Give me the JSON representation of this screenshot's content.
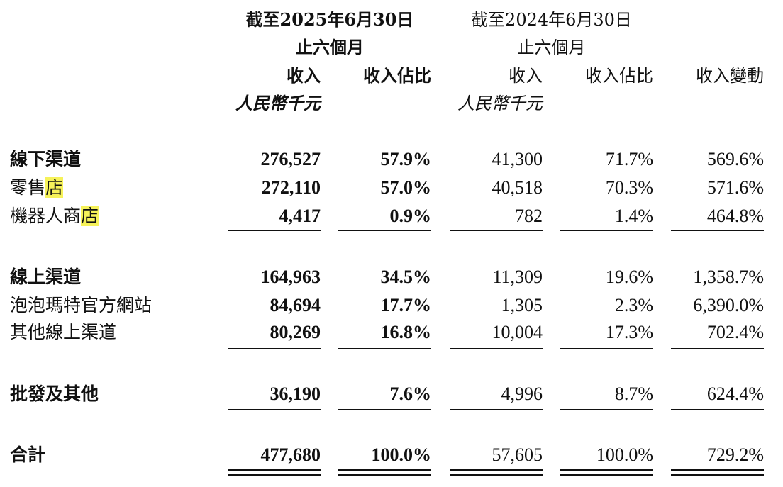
{
  "header": {
    "period_2025": "截至2025年6月30日",
    "period_2024": "截至2024年6月30日",
    "six_months_2025": "止六個月",
    "six_months_2024": "止六個月",
    "col_revenue_2025": "收入",
    "col_share_2025": "收入佔比",
    "col_revenue_2024": "收入",
    "col_share_2024": "收入佔比",
    "col_change": "收入變動",
    "unit_2025": "人民幣千元",
    "unit_2024": "人民幣千元"
  },
  "rows": [
    {
      "label": "線下渠道",
      "rev2025": "276,527",
      "share2025": "57.9%",
      "rev2024": "41,300",
      "share2024": "71.7%",
      "change": "569.6%"
    },
    {
      "label_main": "零售",
      "label_highlight": "店",
      "rev2025": "272,110",
      "share2025": "57.0%",
      "rev2024": "40,518",
      "share2024": "70.3%",
      "change": "571.6%"
    },
    {
      "label_main": "機器人商",
      "label_highlight": "店",
      "rev2025": "4,417",
      "share2025": "0.9%",
      "rev2024": "782",
      "share2024": "1.4%",
      "change": "464.8%"
    },
    {
      "label": "線上渠道",
      "rev2025": "164,963",
      "share2025": "34.5%",
      "rev2024": "11,309",
      "share2024": "19.6%",
      "change": "1,358.7%"
    },
    {
      "label": "泡泡瑪特官方網站",
      "rev2025": "84,694",
      "share2025": "17.7%",
      "rev2024": "1,305",
      "share2024": "2.3%",
      "change": "6,390.0%"
    },
    {
      "label": "其他線上渠道",
      "rev2025": "80,269",
      "share2025": "16.8%",
      "rev2024": "10,004",
      "share2024": "17.3%",
      "change": "702.4%"
    },
    {
      "label": "批發及其他",
      "rev2025": "36,190",
      "share2025": "7.6%",
      "rev2024": "4,996",
      "share2024": "8.7%",
      "change": "624.4%"
    },
    {
      "label": "合計",
      "rev2025": "477,680",
      "share2025": "100.0%",
      "rev2024": "57,605",
      "share2024": "100.0%",
      "change": "729.2%"
    }
  ],
  "colors": {
    "highlight": "#f6f25a",
    "text": "#111111"
  }
}
